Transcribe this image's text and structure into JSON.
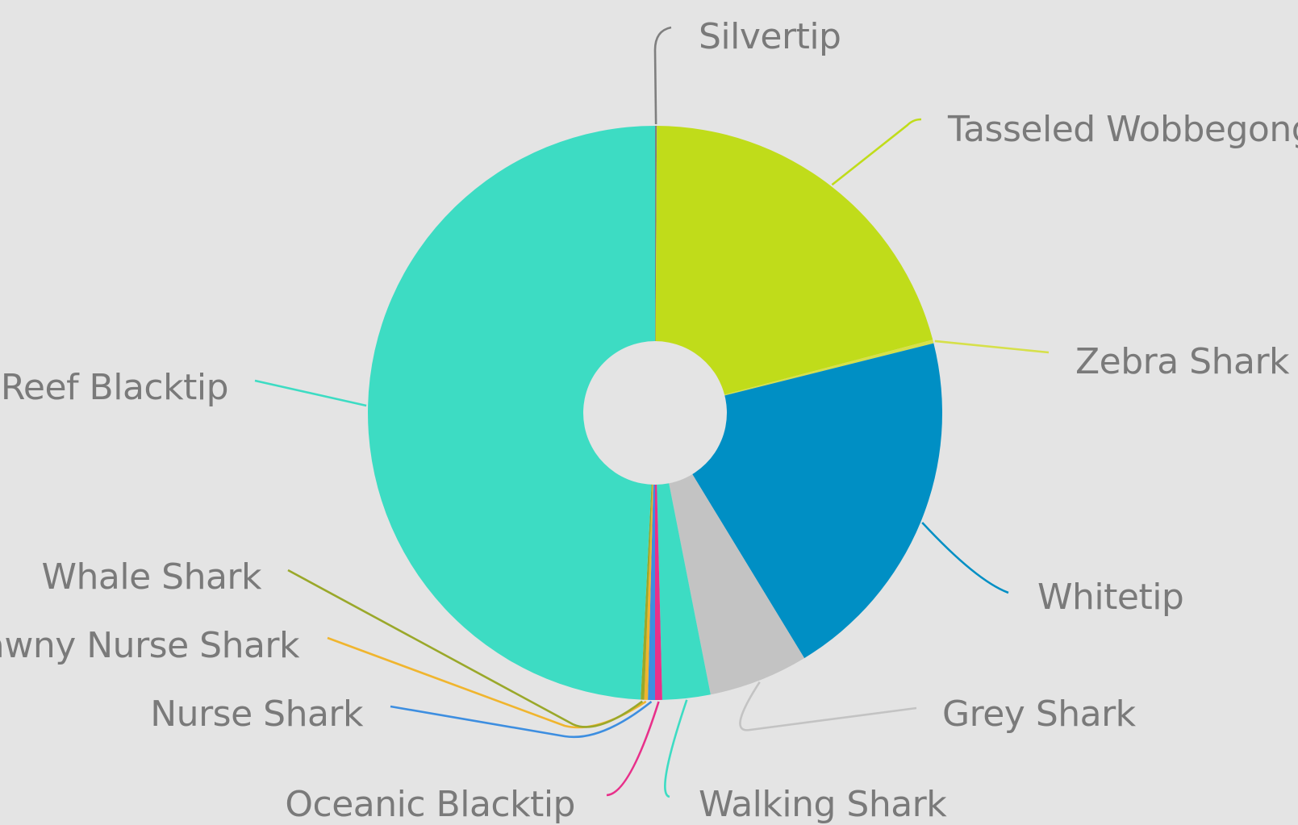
{
  "chart_data": {
    "type": "pie",
    "donut": true,
    "hole_ratio": 0.25,
    "legend": "none",
    "slices": [
      {
        "name": "Silvertip",
        "value": 0.1,
        "color": "#7f7f7f"
      },
      {
        "name": "Tasseled Wobbegong",
        "value": 20.8,
        "color": "#c0dc1a"
      },
      {
        "name": "Zebra Shark",
        "value": 0.2,
        "color": "#d6e04a"
      },
      {
        "name": "Whitetip",
        "value": 20.2,
        "color": "#008fc4"
      },
      {
        "name": "Grey Shark",
        "value": 5.6,
        "color": "#c3c3c3"
      },
      {
        "name": "Walking Shark",
        "value": 2.7,
        "color": "#3ddcc3"
      },
      {
        "name": "Oceanic Blacktip",
        "value": 0.4,
        "color": "#e8308a"
      },
      {
        "name": "Nurse Shark",
        "value": 0.4,
        "color": "#3d8ee0"
      },
      {
        "name": "Tawny Nurse Shark",
        "value": 0.2,
        "color": "#f0b52e"
      },
      {
        "name": "Whale Shark",
        "value": 0.2,
        "color": "#9aa82a"
      },
      {
        "name": "Reef Blacktip",
        "value": 49.2,
        "color": "#3ddcc3"
      }
    ]
  }
}
